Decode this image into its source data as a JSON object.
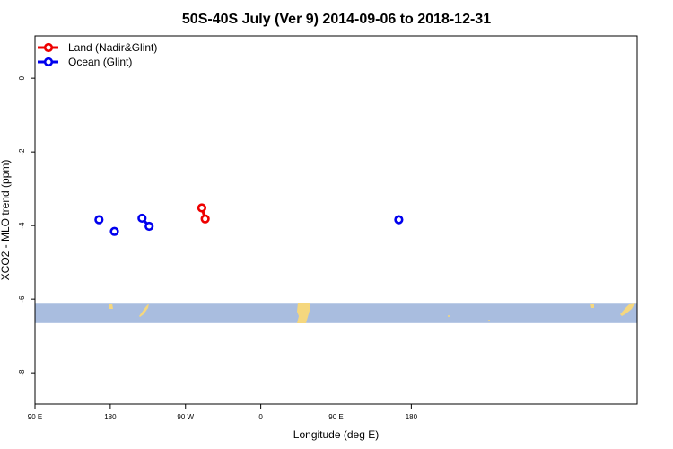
{
  "chart_data": {
    "type": "scatter",
    "title": "50S-40S July (Ver 9)   2014-09-06 to 2018-12-31",
    "xlabel": "Longitude (deg E)",
    "ylabel": "XCO2 - MLO trend (ppm)",
    "xlim": [
      90,
      450
    ],
    "ylim": [
      -8.85,
      1.15
    ],
    "x_ticks": [
      {
        "value": 90,
        "label": "90 E"
      },
      {
        "value": 180,
        "label": "180"
      },
      {
        "value": 270,
        "label": "90 W"
      },
      {
        "value": 360,
        "label": "0"
      },
      {
        "value": 450,
        "label": "90 E"
      },
      {
        "value": 540,
        "label": "180"
      }
    ],
    "y_ticks": [
      {
        "value": 0,
        "label": "0"
      },
      {
        "value": -2,
        "label": "-2"
      },
      {
        "value": -4,
        "label": "-4"
      },
      {
        "value": -6,
        "label": "-6"
      },
      {
        "value": -8,
        "label": "-8"
      }
    ],
    "legend_position": "top-left",
    "series": [
      {
        "name": "Land (Nadir&Glint)",
        "color": "#ee0000",
        "segments": [
          [
            {
              "x": 289.5,
              "y": -3.52
            },
            {
              "x": 293.5,
              "y": -3.82
            }
          ]
        ]
      },
      {
        "name": "Ocean (Glint)",
        "color": "#0000ee",
        "segments": [
          [
            {
              "x": 166.5,
              "y": -3.84
            }
          ],
          [
            {
              "x": 185,
              "y": -4.16
            }
          ],
          [
            {
              "x": 218,
              "y": -3.8
            },
            {
              "x": 226.5,
              "y": -4.02
            }
          ],
          [
            {
              "x": 525,
              "y": -3.84
            }
          ]
        ]
      }
    ],
    "map_strip": {
      "y_top": -6.1,
      "y_bottom": -6.65,
      "ocean_color": "#a9bddf",
      "land_color": "#f5d77e"
    }
  }
}
